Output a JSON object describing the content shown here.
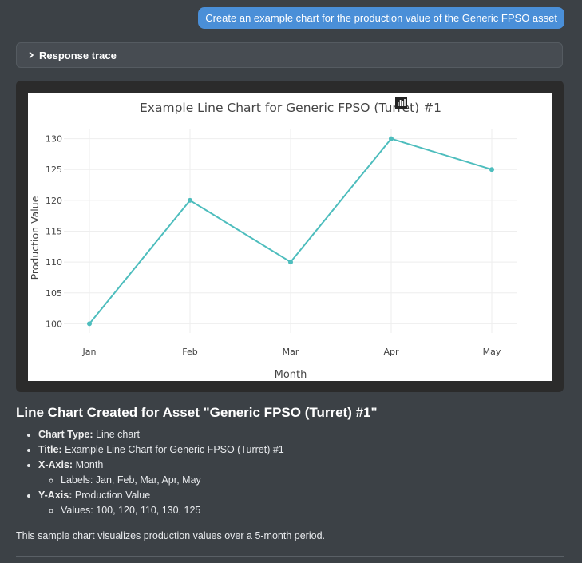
{
  "user_message": "Create an example chart for the production value of the Generic FPSO asset",
  "response_trace": {
    "label": "Response trace"
  },
  "chart_data": {
    "type": "line",
    "title": "Example Line Chart for Generic FPSO (Turret) #1",
    "xlabel": "Month",
    "ylabel": "Production Value",
    "categories": [
      "Jan",
      "Feb",
      "Mar",
      "Apr",
      "May"
    ],
    "series": [
      {
        "values": [
          100,
          120,
          110,
          130,
          125
        ],
        "color": "#4dbdbd"
      }
    ],
    "yticks": [
      100,
      105,
      110,
      115,
      120,
      125,
      130
    ],
    "ylim": [
      98.5,
      131.5
    ],
    "grid": true,
    "legend": "none"
  },
  "modebar_icons": [
    "camera-icon",
    "zoom-icon",
    "box-select-icon",
    "zoom-in-icon",
    "zoom-out-icon",
    "autoscale-icon",
    "reset-icon",
    "plotly-logo-icon"
  ],
  "summary": {
    "heading": "Line Chart Created for Asset \"Generic FPSO (Turret) #1\"",
    "chart_type_label": "Chart Type:",
    "chart_type_value": "Line chart",
    "title_label": "Title:",
    "title_value": "Example Line Chart for Generic FPSO (Turret) #1",
    "xaxis_label": "X-Axis:",
    "xaxis_value": "Month",
    "xaxis_sub": "Labels: Jan, Feb, Mar, Apr, May",
    "yaxis_label": "Y-Axis:",
    "yaxis_value": "Production Value",
    "yaxis_sub": "Values: 100, 120, 110, 130, 125",
    "footer": "This sample chart visualizes production values over a 5-month period."
  }
}
